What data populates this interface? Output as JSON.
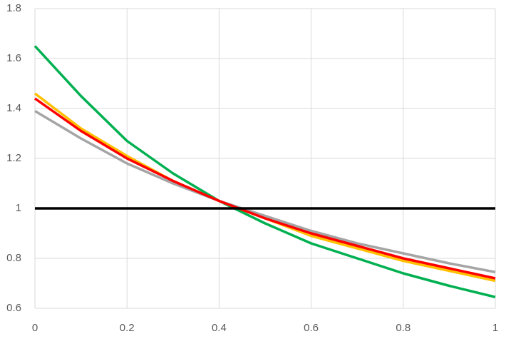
{
  "chart_data": {
    "type": "line",
    "x": [
      0,
      0.1,
      0.2,
      0.3,
      0.4,
      0.5,
      0.6,
      0.7,
      0.8,
      0.9,
      1
    ],
    "series": [
      {
        "color": "#00b050",
        "values": [
          1.65,
          1.45,
          1.27,
          1.14,
          1.03,
          0.94,
          0.86,
          0.8,
          0.74,
          0.69,
          0.645
        ]
      },
      {
        "color": "#ffc000",
        "values": [
          1.46,
          1.32,
          1.21,
          1.11,
          1.03,
          0.96,
          0.89,
          0.84,
          0.79,
          0.75,
          0.71
        ]
      },
      {
        "color": "#a5a5a5",
        "values": [
          1.39,
          1.28,
          1.18,
          1.1,
          1.03,
          0.97,
          0.91,
          0.86,
          0.82,
          0.78,
          0.745
        ]
      },
      {
        "color": "#ff0000",
        "values": [
          1.44,
          1.31,
          1.2,
          1.11,
          1.03,
          0.96,
          0.9,
          0.85,
          0.8,
          0.76,
          0.72
        ]
      },
      {
        "color": "#000000",
        "values": [
          1,
          1,
          1,
          1,
          1,
          1,
          1,
          1,
          1,
          1,
          1
        ]
      }
    ],
    "xlim": [
      0,
      1
    ],
    "xticks": [
      0,
      0.2,
      0.4,
      0.6,
      0.8,
      1
    ],
    "ylim": [
      0.6,
      1.8
    ],
    "yticks": [
      0.6,
      0.8,
      1,
      1.2,
      1.4,
      1.6,
      1.8
    ],
    "grid": true
  }
}
